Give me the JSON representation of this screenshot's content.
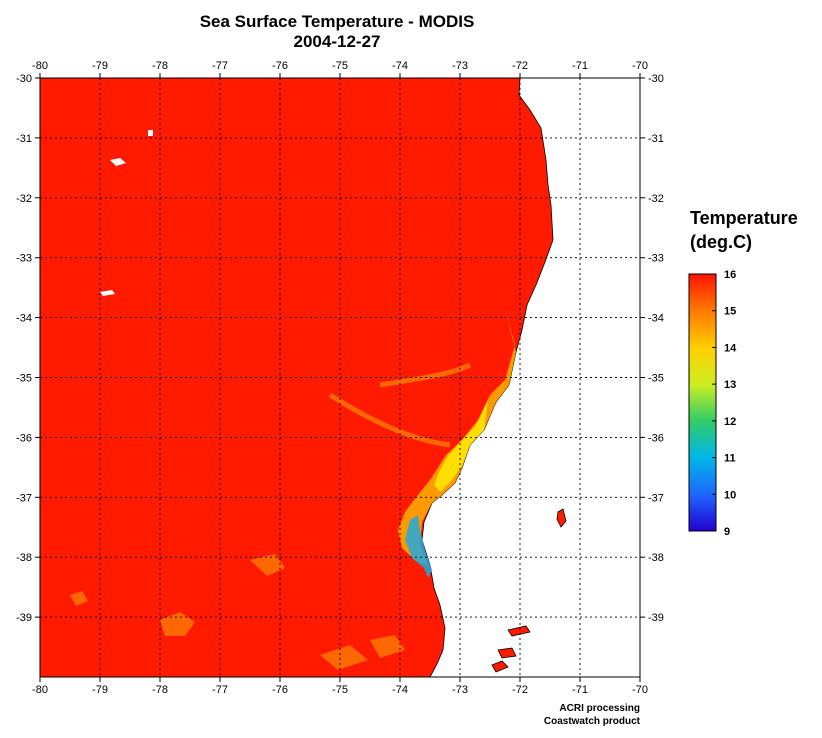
{
  "header": {
    "title": "Sea Surface Temperature - MODIS",
    "date": "2004-12-27"
  },
  "legend": {
    "title_line1": "Temperature",
    "title_line2": "(deg.C)",
    "ticks": [
      "16",
      "15",
      "14",
      "13",
      "12",
      "11",
      "10",
      "9"
    ],
    "range": [
      9,
      16
    ]
  },
  "credits": {
    "line1": "ACRI processing",
    "line2": "Coastwatch product"
  },
  "map": {
    "lon_range": [
      -80,
      -70
    ],
    "lat_range": [
      -40,
      -30
    ],
    "lon_ticks": [
      "-80",
      "-79",
      "-78",
      "-77",
      "-76",
      "-75",
      "-74",
      "-73",
      "-72",
      "-71",
      "-70"
    ],
    "lat_ticks": [
      "-30",
      "-31",
      "-32",
      "-33",
      "-34",
      "-35",
      "-36",
      "-37",
      "-38",
      "-39"
    ],
    "colors": {
      "sea_warm": "#ff1a00",
      "land": "#ffffff",
      "grid": "#000000"
    }
  }
}
